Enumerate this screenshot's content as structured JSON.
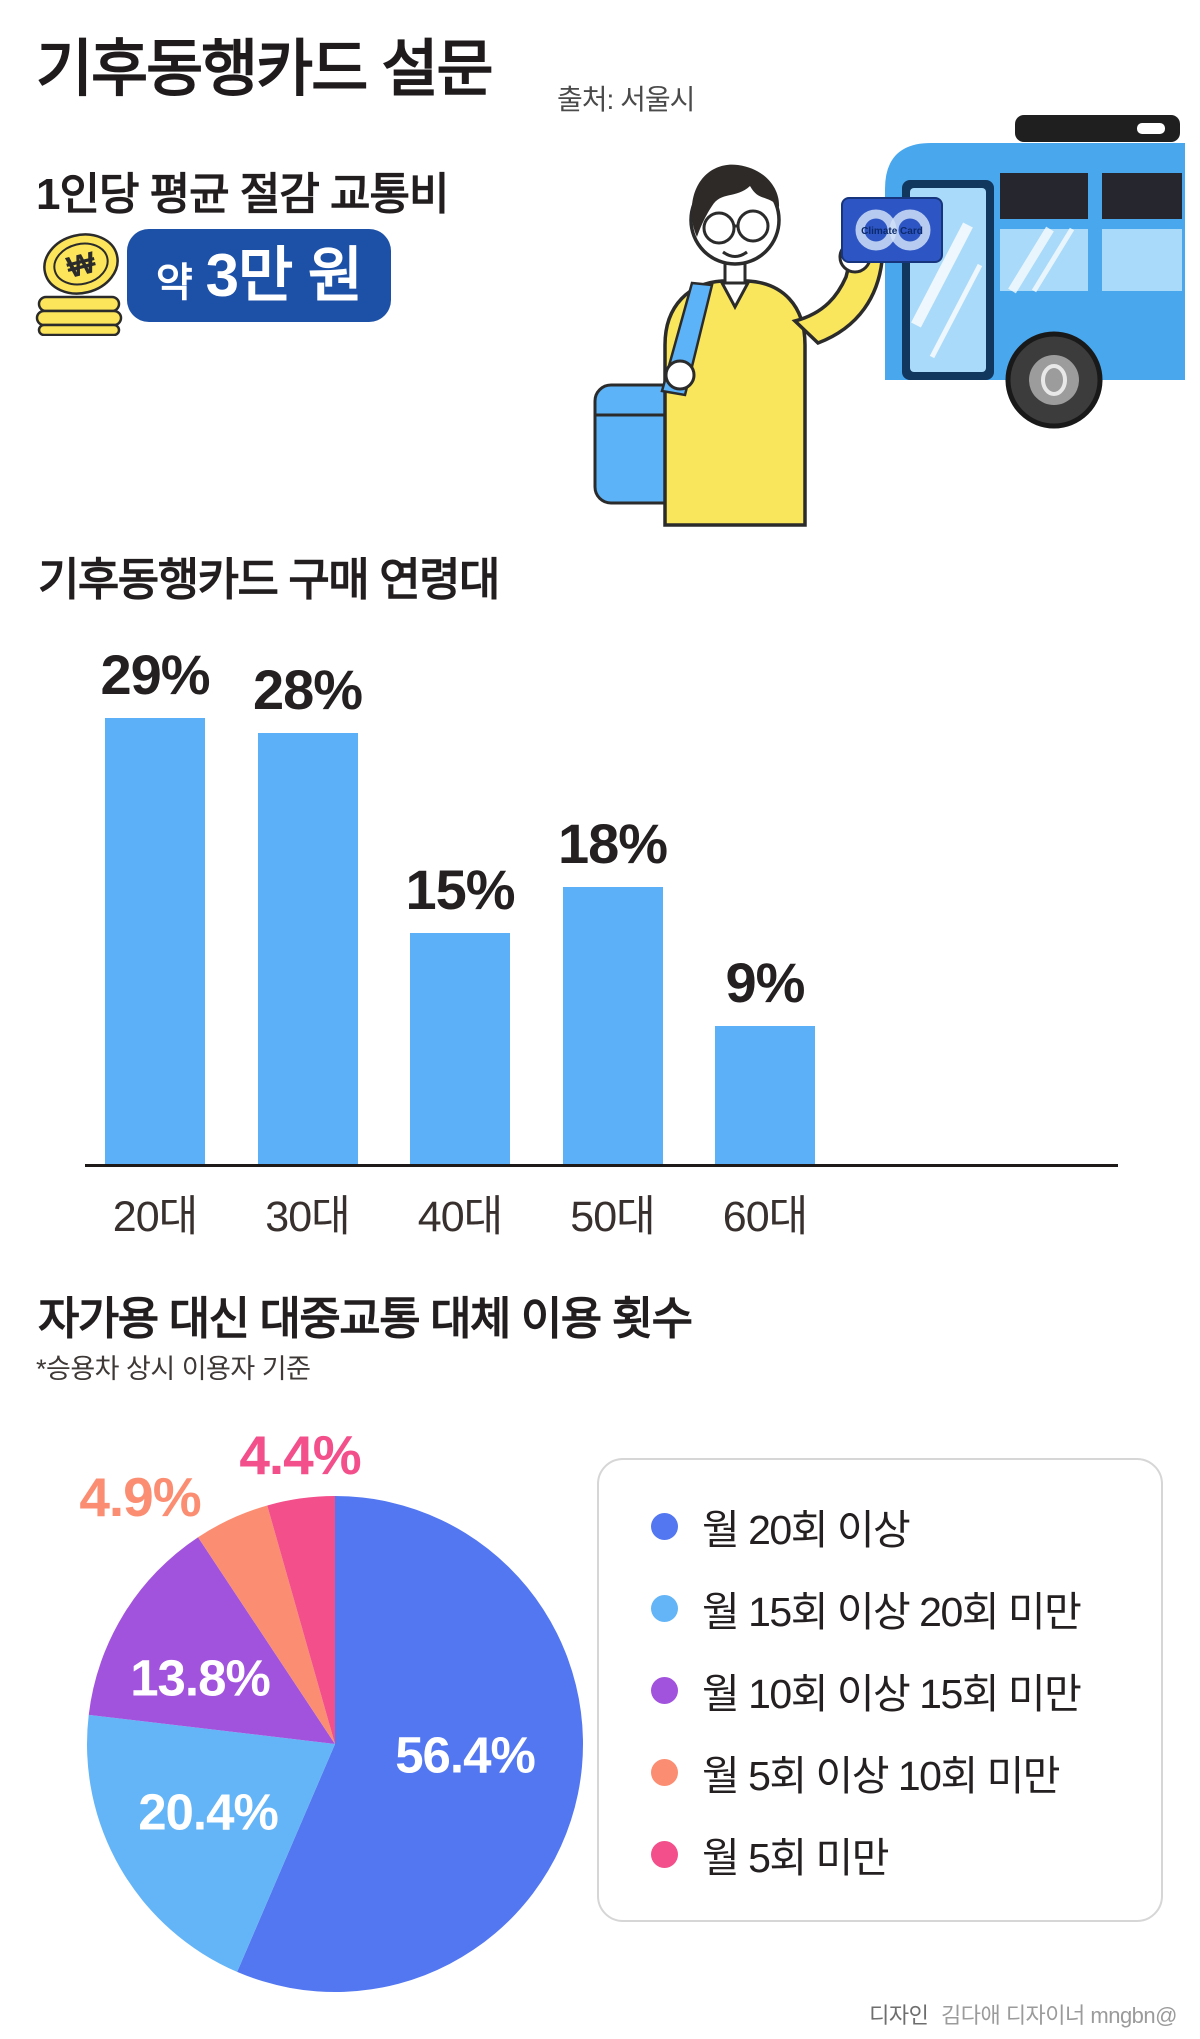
{
  "header": {
    "title": "기후동행카드 설문",
    "source": "출처: 서울시"
  },
  "savings": {
    "label": "1인당 평균 절감 교통비",
    "amount_prefix": "약",
    "amount": "3만 원",
    "badge_color": "#1D50A7"
  },
  "illustration": {
    "card_label": "Climate Card",
    "coin_symbol": "₩"
  },
  "chart_data": [
    {
      "type": "bar",
      "title": "기후동행카드 구매 연령대",
      "categories": [
        "20대",
        "30대",
        "40대",
        "50대",
        "60대"
      ],
      "values": [
        29,
        28,
        15,
        18,
        9
      ],
      "unit": "%",
      "bar_color": "#5BB0F8",
      "ylim": [
        0,
        30
      ],
      "grid": false,
      "value_labels": "above-bars"
    },
    {
      "type": "pie",
      "title": "자가용 대신 대중교통 대체 이용 횟수",
      "note": "*승용차 상시 이용자 기준",
      "slices": [
        {
          "label": "월 20회 이상",
          "value": 56.4,
          "color": "#5377F1"
        },
        {
          "label": "월 15회 이상 20회 미만",
          "value": 20.4,
          "color": "#64B5F7"
        },
        {
          "label": "월 10회 이상 15회 미만",
          "value": 13.8,
          "color": "#A253DD"
        },
        {
          "label": "월 5회 이상 10회 미만",
          "value": 4.9,
          "color": "#FB8E72"
        },
        {
          "label": "월 5회 미만",
          "value": 4.4,
          "color": "#F24F8B"
        }
      ],
      "start_angle_deg": -90,
      "direction": "clockwise",
      "legend_position": "right"
    }
  ],
  "footer": {
    "credit_prefix": "디자인",
    "credit": "김다애 디자이너 mngbn@"
  }
}
